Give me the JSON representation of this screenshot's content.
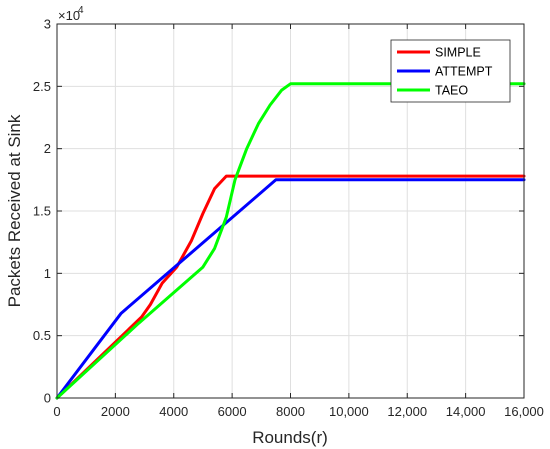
{
  "chart_data": {
    "type": "line",
    "xlabel": "Rounds(r)",
    "ylabel": "Packets Received at Sink",
    "xlim": [
      0,
      16000
    ],
    "ylim": [
      0,
      30000
    ],
    "x_ticks": [
      0,
      2000,
      4000,
      6000,
      8000,
      10000,
      12000,
      14000,
      16000
    ],
    "x_tick_labels": [
      "0",
      "2000",
      "4000",
      "6000",
      "8000",
      "10,000",
      "12,000",
      "14,000",
      "16,000"
    ],
    "y_ticks": [
      0,
      5000,
      10000,
      15000,
      20000,
      25000,
      30000
    ],
    "y_tick_labels": [
      "0",
      "0.5",
      "1",
      "1.5",
      "2",
      "2.5",
      "3"
    ],
    "y_multiplier_base": "×10",
    "y_multiplier_exp": "4",
    "grid": true,
    "legend_position": "top-right",
    "series": [
      {
        "name": "SIMPLE",
        "color": "#ff0000",
        "x": [
          0,
          2900,
          3200,
          3600,
          4100,
          4600,
          5000,
          5400,
          5800,
          6200,
          8000,
          10000,
          12000,
          14000,
          16000
        ],
        "y": [
          0,
          6500,
          7500,
          9200,
          10500,
          12600,
          14800,
          16800,
          17800,
          17800,
          17800,
          17800,
          17800,
          17800,
          17800
        ]
      },
      {
        "name": "ATTEMPT",
        "color": "#0000ff",
        "x": [
          0,
          2200,
          7500,
          8000,
          10000,
          12000,
          14000,
          16000
        ],
        "y": [
          0,
          6800,
          17500,
          17500,
          17500,
          17500,
          17500,
          17500
        ]
      },
      {
        "name": "TAEO",
        "color": "#00ff00",
        "x": [
          0,
          2800,
          5000,
          5400,
          5800,
          6100,
          6500,
          6900,
          7300,
          7700,
          8000,
          9000,
          10000,
          12000,
          14000,
          16000
        ],
        "y": [
          0,
          6000,
          10500,
          12000,
          14500,
          17500,
          20000,
          22000,
          23500,
          24700,
          25200,
          25200,
          25200,
          25200,
          25200,
          25200
        ]
      }
    ]
  }
}
